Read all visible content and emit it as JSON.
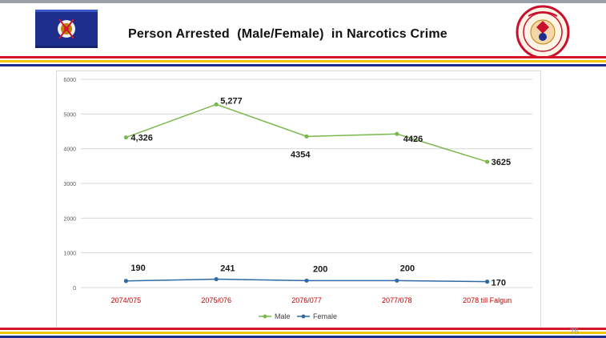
{
  "slide": {
    "title": "Person Arrested  (Male/Female)  in Narcotics Crime",
    "page_number": "75"
  },
  "colors": {
    "stripe_red": "#d4162b",
    "stripe_yellow": "#f5c400",
    "stripe_blue": "#1c2f8c",
    "male_series": "#79b84a",
    "female_series": "#2e6aa3",
    "category_label": "#c00000"
  },
  "chart_data": {
    "type": "line",
    "categories": [
      "2074/075",
      "2075/076",
      "2076/077",
      "2077/078",
      "2078 till Falgun"
    ],
    "series": [
      {
        "name": "Male",
        "values": [
          4326,
          5277,
          4354,
          4426,
          3625
        ],
        "labels": [
          "4,326",
          "5,277",
          "4354",
          "4426",
          "3625"
        ],
        "color": "#79b84a"
      },
      {
        "name": "Female",
        "values": [
          190,
          241,
          200,
          200,
          170
        ],
        "labels": [
          "190",
          "241",
          "200",
          "200",
          "170"
        ],
        "color": "#2e6aa3"
      }
    ],
    "ylim": [
      0,
      6000
    ],
    "yticks": [
      0,
      1000,
      2000,
      3000,
      4000,
      5000,
      6000
    ],
    "grid": true,
    "legend": "bottom"
  }
}
